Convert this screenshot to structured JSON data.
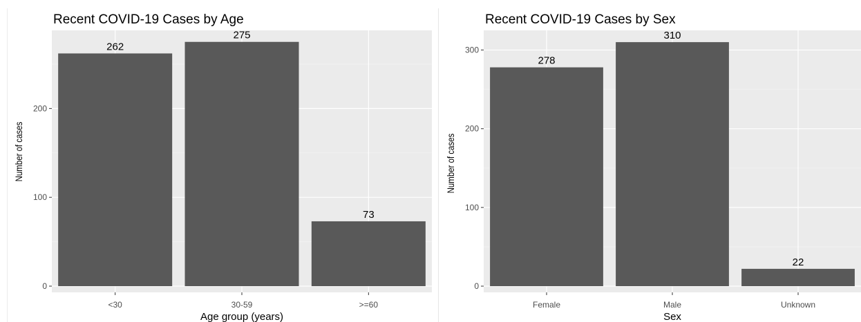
{
  "chart_data": [
    {
      "type": "bar",
      "title": "Recent COVID-19 Cases by Age",
      "xlabel": "Age group (years)",
      "ylabel": "Number of cases",
      "categories": [
        "<30",
        "30-59",
        ">=60"
      ],
      "values": [
        262,
        275,
        73
      ],
      "data_labels": [
        "262",
        "275",
        "73"
      ],
      "yticks": [
        0,
        100,
        200
      ],
      "ylim": [
        0,
        288
      ],
      "grid": true,
      "bar_color": "#595959",
      "panel_color": "#ebebeb"
    },
    {
      "type": "bar",
      "title": "Recent COVID-19 Cases by Sex",
      "xlabel": "Sex",
      "ylabel": "Number of cases",
      "categories": [
        "Female",
        "Male",
        "Unknown"
      ],
      "values": [
        278,
        310,
        22
      ],
      "data_labels": [
        "278",
        "310",
        "22"
      ],
      "yticks": [
        0,
        100,
        200,
        300
      ],
      "ylim": [
        0,
        325
      ],
      "grid": true,
      "bar_color": "#595959",
      "panel_color": "#ebebeb"
    }
  ]
}
